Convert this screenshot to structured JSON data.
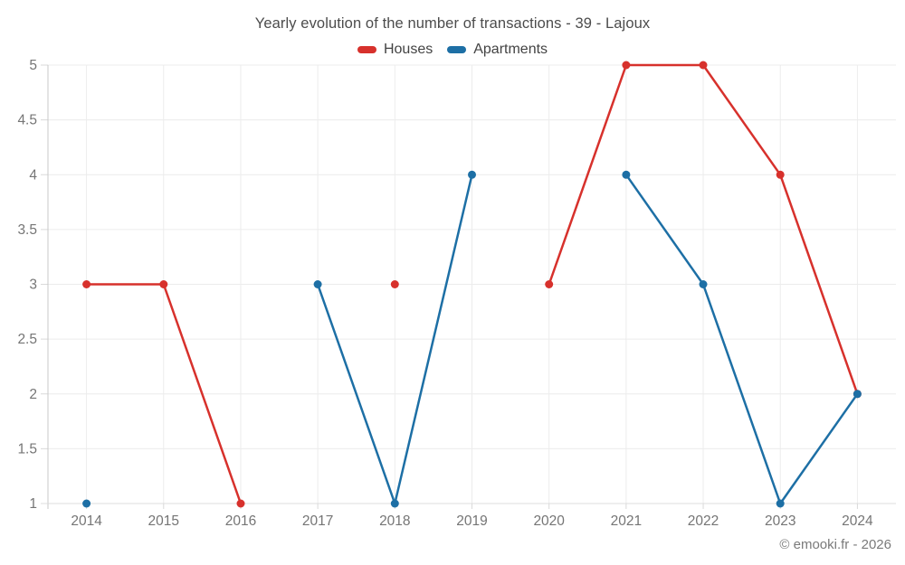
{
  "chart_data": {
    "type": "line",
    "title": "Yearly evolution of the number of transactions - 39 - Lajoux",
    "categories": [
      "2014",
      "2015",
      "2016",
      "2017",
      "2018",
      "2019",
      "2020",
      "2021",
      "2022",
      "2023",
      "2024"
    ],
    "series": [
      {
        "name": "Houses",
        "color": "#d7312c",
        "values": [
          3,
          3,
          1,
          null,
          3,
          null,
          3,
          5,
          5,
          4,
          2
        ]
      },
      {
        "name": "Apartments",
        "color": "#1d6fa5",
        "values": [
          1,
          null,
          null,
          3,
          1,
          4,
          null,
          4,
          3,
          1,
          2
        ]
      }
    ],
    "xlabel": "",
    "ylabel": "",
    "ylim": [
      1,
      5
    ],
    "y_ticks": [
      1,
      1.5,
      2,
      2.5,
      3,
      3.5,
      4,
      4.5,
      5
    ],
    "grid": true,
    "legend_position": "top",
    "line_width": 2.5,
    "marker_radius": 4.5
  },
  "footer": {
    "credit": "© emooki.fr - 2026"
  }
}
